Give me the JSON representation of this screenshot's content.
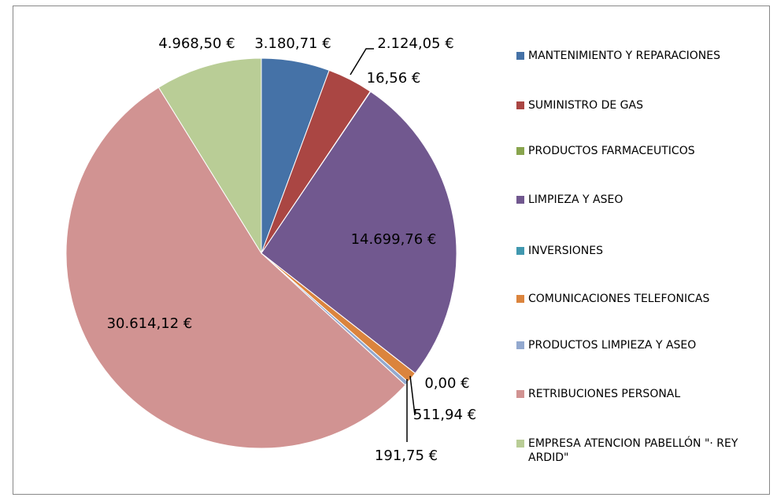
{
  "chart_data": {
    "type": "pie",
    "categories": [
      "MANTENIMIENTO Y REPARACIONES",
      "SUMINISTRO DE GAS",
      "PRODUCTOS FARMACEUTICOS",
      "LIMPIEZA Y ASEO",
      "INVERSIONES",
      "COMUNICACIONES TELEFONICAS",
      "PRODUCTOS LIMPIEZA Y ASEO",
      "RETRIBUCIONES PERSONAL",
      "EMPRESA ATENCION PABELLÓN \"· REY ARDID\""
    ],
    "values": [
      3180.71,
      2124.05,
      16.56,
      14699.76,
      0.0,
      511.94,
      191.75,
      30614.12,
      4968.5
    ],
    "value_labels": [
      "3.180,71 €",
      "2.124,05 €",
      "16,56 €",
      "14.699,76 €",
      "0,00 €",
      "511,94 €",
      "191,75 €",
      "30.614,12 €",
      "4.968,50 €"
    ],
    "colors": [
      "#4572a7",
      "#aa4643",
      "#89a54e",
      "#71588f",
      "#4198af",
      "#db843d",
      "#93a9cf",
      "#d19392",
      "#b9cd96"
    ],
    "legend": "right"
  }
}
